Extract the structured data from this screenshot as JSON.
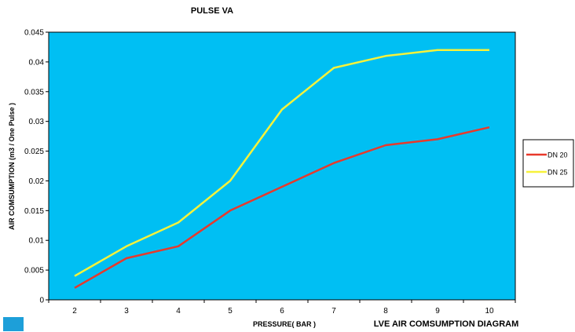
{
  "chart_data": {
    "type": "line",
    "title": "PULSE VA",
    "caption": "LVE AIR COMSUMPTION DIAGRAM",
    "xlabel": "PRESSURE( BAR )",
    "ylabel": "AIR COMSUMPTION  (m3 / One Pulse )",
    "x": [
      2,
      3,
      4,
      5,
      6,
      7,
      8,
      9,
      10
    ],
    "ylim": [
      0,
      0.045
    ],
    "yticks": [
      "0",
      "0.005",
      "0.01",
      "0.015",
      "0.02",
      "0.025",
      "0.03",
      "0.035",
      "0.04",
      "0.045"
    ],
    "grid": false,
    "legend_position": "right",
    "plot_background": "#00bff3",
    "series": [
      {
        "name": "DN 20",
        "color": "#e8392b",
        "values": [
          0.002,
          0.007,
          0.009,
          0.015,
          0.019,
          0.023,
          0.026,
          0.027,
          0.029
        ]
      },
      {
        "name": "DN 25",
        "color": "#f7f23a",
        "values": [
          0.004,
          0.009,
          0.013,
          0.02,
          0.032,
          0.039,
          0.041,
          0.042,
          0.042
        ]
      }
    ]
  }
}
